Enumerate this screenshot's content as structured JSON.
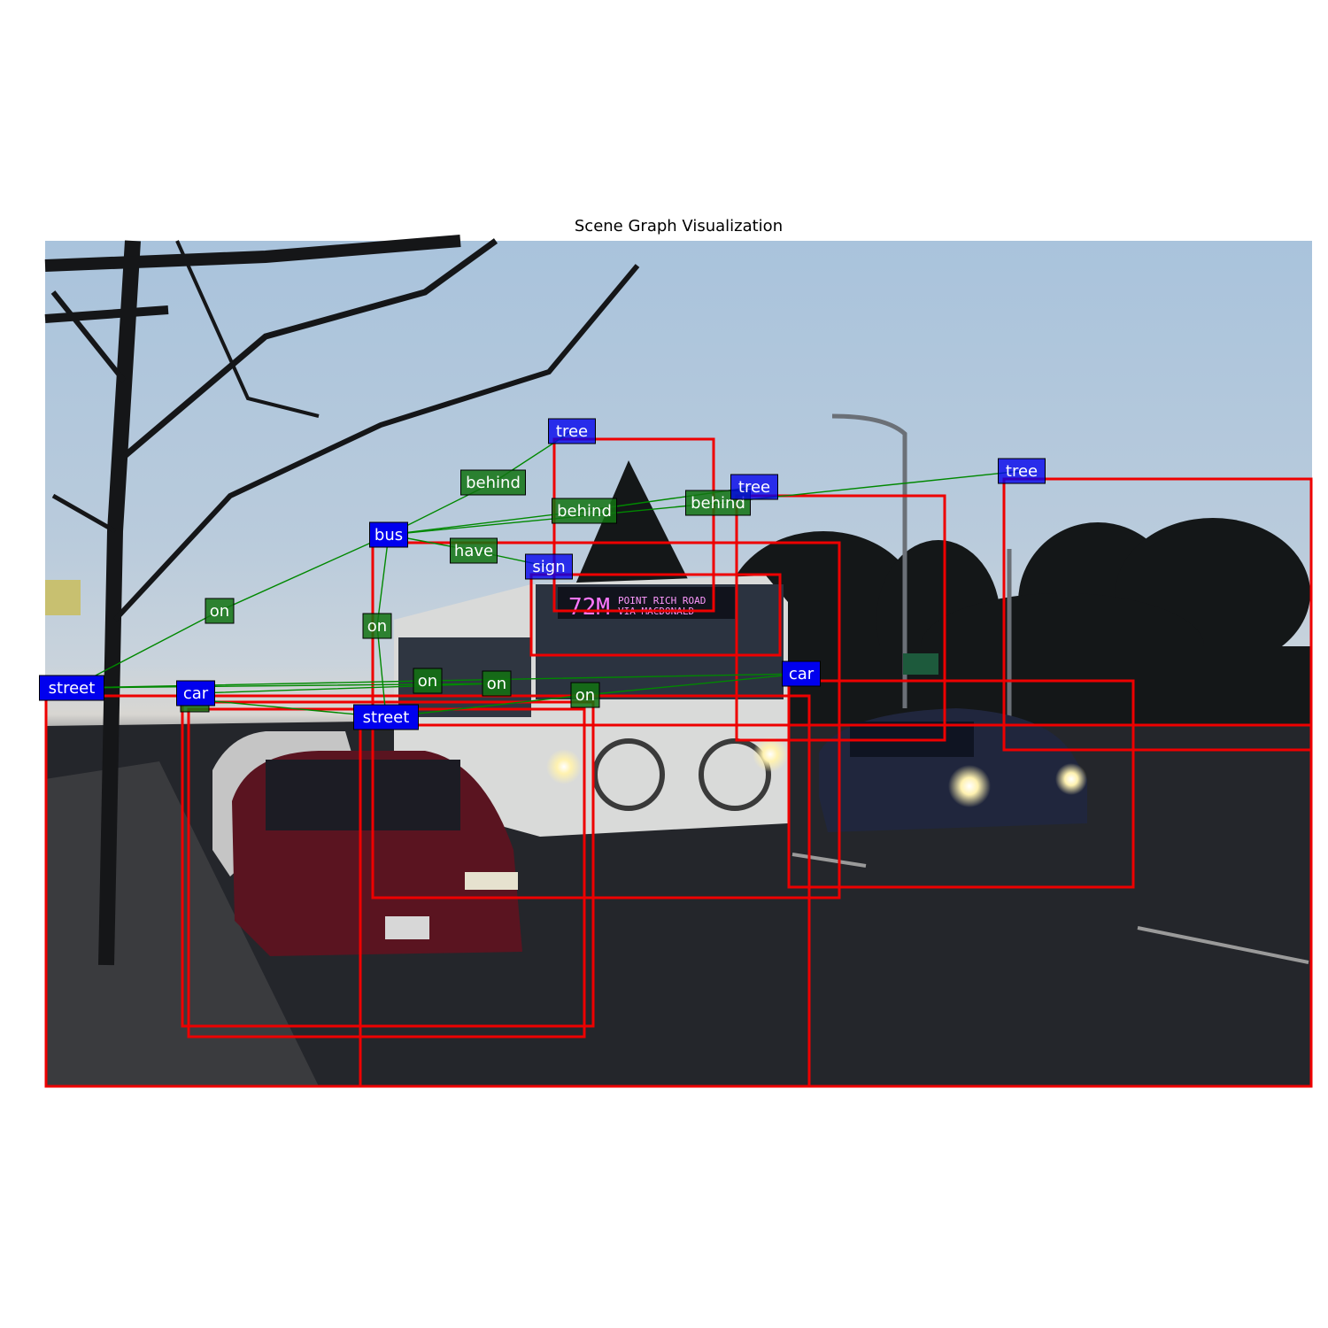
{
  "title": "Scene Graph Visualization",
  "colors": {
    "box": "#ee0000",
    "edge": "#008800",
    "node_fill": "#0000ee",
    "rel_fill": "#127312"
  },
  "nodes": [
    {
      "id": "n-tree-1",
      "label": "tree"
    },
    {
      "id": "n-tree-2",
      "label": "tree"
    },
    {
      "id": "n-tree-3",
      "label": "tree"
    },
    {
      "id": "n-bus",
      "label": "bus"
    },
    {
      "id": "n-sign",
      "label": "sign"
    },
    {
      "id": "n-car-1",
      "label": "car"
    },
    {
      "id": "n-car-2",
      "label": "car"
    },
    {
      "id": "n-street-1",
      "label": "street"
    },
    {
      "id": "n-street-2",
      "label": "street"
    }
  ],
  "relations": [
    {
      "id": "r-behind-1",
      "label": "behind",
      "subject": "n-bus",
      "object": "n-tree-1"
    },
    {
      "id": "r-behind-2",
      "label": "behind",
      "subject": "n-bus",
      "object": "n-tree-2"
    },
    {
      "id": "r-behind-3",
      "label": "behind",
      "subject": "n-bus",
      "object": "n-tree-3"
    },
    {
      "id": "r-have",
      "label": "have",
      "subject": "n-bus",
      "object": "n-sign"
    },
    {
      "id": "r-on-1",
      "label": "on",
      "subject": "n-bus",
      "object": "n-street-1"
    },
    {
      "id": "r-on-2",
      "label": "on",
      "subject": "n-bus",
      "object": "n-street-2"
    },
    {
      "id": "r-on-3",
      "label": "on",
      "subject": "n-car-1",
      "object": "n-street-1"
    },
    {
      "id": "r-on-4",
      "label": "on",
      "subject": "n-car-1",
      "object": "n-street-2"
    },
    {
      "id": "r-on-5",
      "label": "on",
      "subject": "n-car-2",
      "object": "n-street-1"
    },
    {
      "id": "r-on-6",
      "label": "on",
      "subject": "n-car-2",
      "object": "n-street-2"
    }
  ]
}
